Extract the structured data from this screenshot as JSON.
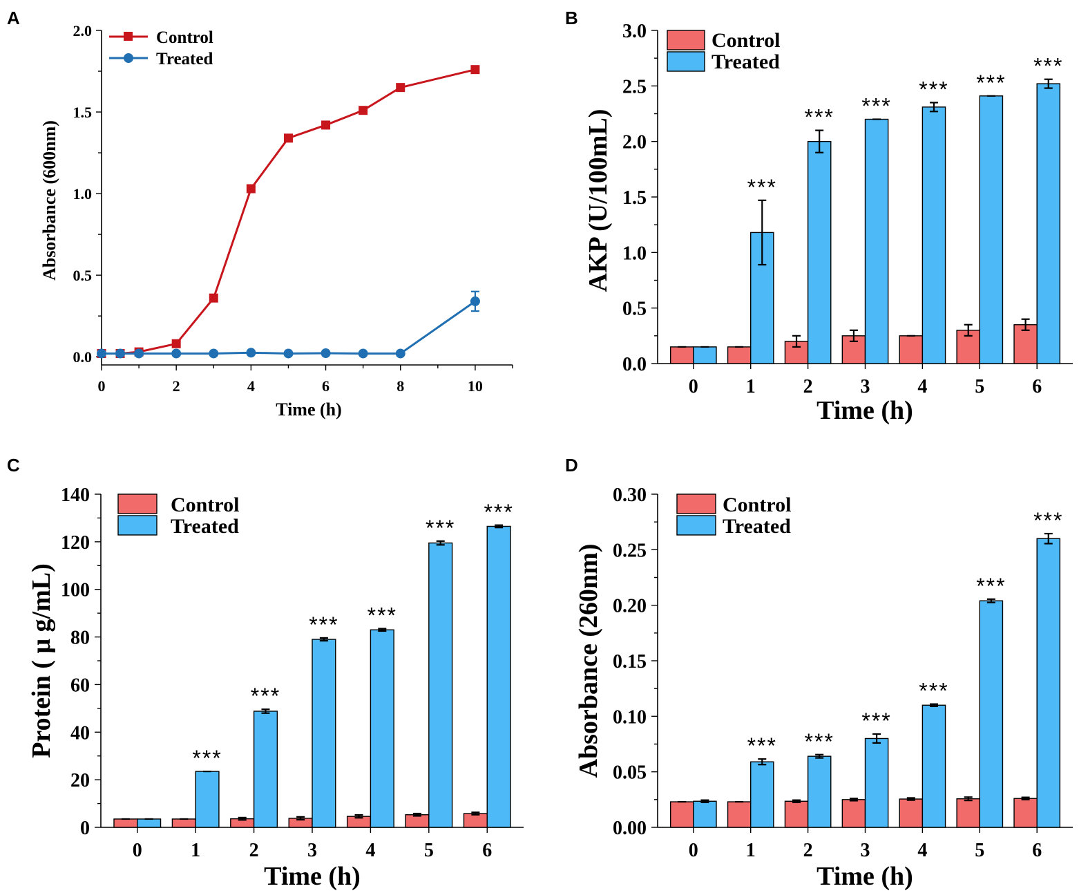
{
  "colors": {
    "line_control": "#c8161d",
    "line_treated": "#1f6fb2",
    "bar_control": "#f26b6b",
    "bar_treated": "#4dbaf7"
  },
  "chart_data": [
    {
      "panel": "A",
      "type": "line",
      "xlabel": "Time (h)",
      "ylabel": "Absorbance (600nm)",
      "xlim": [
        0,
        11
      ],
      "ylim": [
        -0.05,
        2.0
      ],
      "xticks": [
        0,
        2,
        4,
        6,
        8,
        10
      ],
      "xtick_labels": [
        "0",
        "2",
        "4",
        "6",
        "8",
        "10"
      ],
      "yticks": [
        0.0,
        0.5,
        1.0,
        1.5,
        2.0
      ],
      "ytick_labels": [
        "0.0",
        "0.5",
        "1.0",
        "1.5",
        "2.0"
      ],
      "legend_position": "top-left",
      "series": [
        {
          "name": "Control",
          "marker": "square",
          "x": [
            0,
            0.5,
            1,
            2,
            3,
            4,
            5,
            6,
            7,
            8,
            10
          ],
          "y": [
            0.02,
            0.02,
            0.03,
            0.08,
            0.36,
            1.03,
            1.34,
            1.42,
            1.51,
            1.65,
            1.76
          ],
          "err": [
            0,
            0,
            0,
            0,
            0,
            0,
            0,
            0,
            0,
            0,
            0
          ]
        },
        {
          "name": "Treated",
          "marker": "circle",
          "x": [
            0,
            0.5,
            1,
            2,
            3,
            4,
            5,
            6,
            7,
            8,
            10
          ],
          "y": [
            0.02,
            0.02,
            0.02,
            0.02,
            0.02,
            0.025,
            0.02,
            0.022,
            0.02,
            0.02,
            0.34
          ],
          "err": [
            0,
            0,
            0,
            0,
            0,
            0,
            0,
            0,
            0,
            0,
            0.06
          ]
        }
      ]
    },
    {
      "panel": "B",
      "type": "bar",
      "xlabel": "Time (h)",
      "ylabel": "AKP (U/100mL)",
      "ylim": [
        0,
        3.0
      ],
      "categories": [
        "0",
        "1",
        "2",
        "3",
        "4",
        "5",
        "6"
      ],
      "yticks": [
        0,
        0.5,
        1.0,
        1.5,
        2.0,
        2.5,
        3.0
      ],
      "ytick_labels": [
        "0.0",
        "0.5",
        "1.0",
        "1.5",
        "2.0",
        "2.5",
        "3.0"
      ],
      "legend_position": "top-left",
      "series": [
        {
          "name": "Control",
          "values": [
            0.15,
            0.15,
            0.2,
            0.25,
            0.25,
            0.3,
            0.35
          ],
          "err": [
            0,
            0,
            0.05,
            0.05,
            0,
            0.05,
            0.05
          ]
        },
        {
          "name": "Treated",
          "values": [
            0.15,
            1.18,
            2.0,
            2.2,
            2.31,
            2.41,
            2.52
          ],
          "err": [
            0,
            0.29,
            0.1,
            0,
            0.04,
            0,
            0.04
          ]
        }
      ],
      "significance": [
        "",
        "***",
        "***",
        "***",
        "***",
        "***",
        "***"
      ]
    },
    {
      "panel": "C",
      "type": "bar",
      "xlabel": "Time (h)",
      "ylabel": "Protein ( μ g/mL)",
      "ylim": [
        0,
        140
      ],
      "categories": [
        "0",
        "1",
        "2",
        "3",
        "4",
        "5",
        "6"
      ],
      "yticks": [
        0,
        20,
        40,
        60,
        80,
        100,
        120,
        140
      ],
      "ytick_labels": [
        "0",
        "20",
        "40",
        "60",
        "80",
        "100",
        "120",
        "140"
      ],
      "legend_position": "top-left",
      "series": [
        {
          "name": "Control",
          "values": [
            3.5,
            3.5,
            3.6,
            3.8,
            4.6,
            5.3,
            5.8
          ],
          "err": [
            0,
            0,
            0.5,
            0.6,
            0.6,
            0.5,
            0.5
          ]
        },
        {
          "name": "Treated",
          "values": [
            3.5,
            23.5,
            48.8,
            79.0,
            83.0,
            119.5,
            126.5
          ],
          "err": [
            0,
            0,
            0.8,
            0.6,
            0.5,
            0.8,
            0.5
          ]
        }
      ],
      "significance": [
        "",
        "***",
        "***",
        "***",
        "***",
        "***",
        "***"
      ]
    },
    {
      "panel": "D",
      "type": "bar",
      "xlabel": "Time (h)",
      "ylabel": "Absorbance (260nm)",
      "ylim": [
        0,
        0.3
      ],
      "categories": [
        "0",
        "1",
        "2",
        "3",
        "4",
        "5",
        "6"
      ],
      "yticks": [
        0,
        0.05,
        0.1,
        0.15,
        0.2,
        0.25,
        0.3
      ],
      "ytick_labels": [
        "0.00",
        "0.05",
        "0.10",
        "0.15",
        "0.20",
        "0.25",
        "0.30"
      ],
      "legend_position": "top-left",
      "series": [
        {
          "name": "Control",
          "values": [
            0.023,
            0.023,
            0.0235,
            0.025,
            0.0255,
            0.0257,
            0.026
          ],
          "err": [
            0,
            0,
            0.001,
            0.001,
            0.001,
            0.0015,
            0.001
          ]
        },
        {
          "name": "Treated",
          "values": [
            0.0235,
            0.059,
            0.064,
            0.08,
            0.11,
            0.204,
            0.26
          ],
          "err": [
            0.001,
            0.0025,
            0.0015,
            0.004,
            0.001,
            0.0015,
            0.0045
          ]
        }
      ],
      "significance": [
        "",
        "***",
        "***",
        "***",
        "***",
        "***",
        "***"
      ]
    }
  ]
}
